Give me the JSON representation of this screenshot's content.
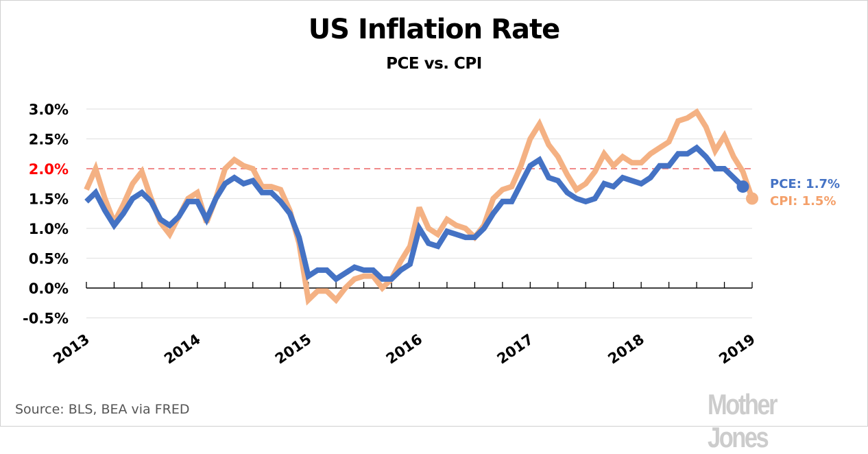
{
  "chart_data": {
    "type": "line",
    "title": "US Inflation Rate",
    "subtitle": "PCE vs. CPI",
    "xlabel": "",
    "ylabel": "",
    "x_start": "2013-01",
    "x_frequency": "monthly",
    "xlim": [
      "2013-01",
      "2019-01"
    ],
    "ylim": [
      -0.5,
      3.0
    ],
    "y_ticks": [
      {
        "value": 3.0,
        "label": "3.0%",
        "highlight": false
      },
      {
        "value": 2.5,
        "label": "2.5%",
        "highlight": false
      },
      {
        "value": 2.0,
        "label": "2.0%",
        "highlight": true
      },
      {
        "value": 1.5,
        "label": "1.5%",
        "highlight": false
      },
      {
        "value": 1.0,
        "label": "1.0%",
        "highlight": false
      },
      {
        "value": 0.5,
        "label": "0.5%",
        "highlight": false
      },
      {
        "value": 0.0,
        "label": "0.0%",
        "highlight": false
      },
      {
        "value": -0.5,
        "label": "-0.5%",
        "highlight": false
      }
    ],
    "x_ticks": [
      {
        "month_index": 0,
        "label": "2013"
      },
      {
        "month_index": 12,
        "label": "2014"
      },
      {
        "month_index": 24,
        "label": "2015"
      },
      {
        "month_index": 36,
        "label": "2016"
      },
      {
        "month_index": 48,
        "label": "2017"
      },
      {
        "month_index": 60,
        "label": "2018"
      },
      {
        "month_index": 72,
        "label": "2019"
      }
    ],
    "minor_tick_every_months": 3,
    "grid": true,
    "reference_line": {
      "value": 2.0,
      "style": "dashed",
      "color": "#f08a8a"
    },
    "series": [
      {
        "name": "CPI",
        "color": "#f4b183",
        "end_label": "CPI: 1.5%",
        "end_label_color": "#f4a06a",
        "values": [
          1.65,
          2.0,
          1.5,
          1.1,
          1.4,
          1.75,
          1.95,
          1.5,
          1.1,
          0.9,
          1.2,
          1.5,
          1.6,
          1.1,
          1.5,
          2.0,
          2.15,
          2.05,
          2.0,
          1.7,
          1.7,
          1.65,
          1.3,
          0.75,
          -0.2,
          -0.05,
          -0.05,
          -0.2,
          0.0,
          0.15,
          0.2,
          0.2,
          0.0,
          0.15,
          0.45,
          0.7,
          1.35,
          1.0,
          0.9,
          1.15,
          1.05,
          1.0,
          0.85,
          1.05,
          1.5,
          1.65,
          1.7,
          2.05,
          2.5,
          2.75,
          2.4,
          2.2,
          1.9,
          1.65,
          1.75,
          1.95,
          2.25,
          2.05,
          2.2,
          2.1,
          2.1,
          2.25,
          2.35,
          2.45,
          2.8,
          2.85,
          2.95,
          2.7,
          2.3,
          2.55,
          2.2,
          1.95,
          1.5
        ]
      },
      {
        "name": "PCE",
        "color": "#4472c4",
        "end_label": "PCE: 1.7%",
        "end_label_color": "#4472c4",
        "values": [
          1.45,
          1.6,
          1.3,
          1.05,
          1.25,
          1.5,
          1.6,
          1.45,
          1.15,
          1.05,
          1.2,
          1.45,
          1.45,
          1.15,
          1.5,
          1.75,
          1.85,
          1.75,
          1.8,
          1.6,
          1.6,
          1.45,
          1.25,
          0.85,
          0.2,
          0.3,
          0.3,
          0.15,
          0.25,
          0.35,
          0.3,
          0.3,
          0.15,
          0.15,
          0.3,
          0.4,
          1.0,
          0.75,
          0.7,
          0.95,
          0.9,
          0.85,
          0.85,
          1.0,
          1.25,
          1.45,
          1.45,
          1.75,
          2.05,
          2.15,
          1.85,
          1.8,
          1.6,
          1.5,
          1.45,
          1.5,
          1.75,
          1.7,
          1.85,
          1.8,
          1.75,
          1.85,
          2.05,
          2.05,
          2.25,
          2.25,
          2.35,
          2.2,
          2.0,
          2.0,
          1.85,
          1.7
        ]
      }
    ]
  },
  "colors": {
    "highlight_tick": "#ff0000",
    "grid": "#e3e3e3",
    "axis": "#000000"
  },
  "footer": {
    "source": "Source: BLS, BEA via FRED",
    "brand": "Mother Jones"
  }
}
